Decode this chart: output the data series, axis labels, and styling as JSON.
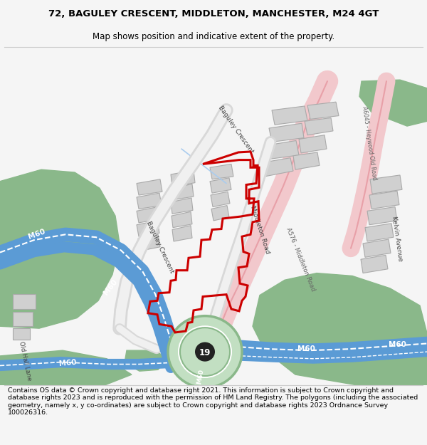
{
  "title_line1": "72, BAGULEY CRESCENT, MIDDLETON, MANCHESTER, M24 4GT",
  "title_line2": "Map shows position and indicative extent of the property.",
  "footer_text": "Contains OS data © Crown copyright and database right 2021. This information is subject to Crown copyright and database rights 2023 and is reproduced with the permission of HM Land Registry. The polygons (including the associated geometry, namely x, y co-ordinates) are subject to Crown copyright and database rights 2023 Ordnance Survey 100026316.",
  "bg_color": "#f5f5f5",
  "map_bg": "#ffffff",
  "road_blue": "#5b9bd5",
  "road_pink_fill": "#f2c8cc",
  "road_pink_edge": "#e8a0a8",
  "green_area": "#8ab88a",
  "roundabout_green": "#c2dfc2",
  "roundabout_edge": "#8ab88a",
  "building_gray": "#d0d0d0",
  "building_outline": "#aaaaaa",
  "red_polygon": "#cc0000",
  "road_gray": "#d8d8d8",
  "road_label_color": "#444444",
  "junction_bg": "#222222",
  "junction_text": "#ffffff",
  "separator_color": "#cccccc",
  "light_blue_line": "#aaccee",
  "title_fontsize": 9.5,
  "subtitle_fontsize": 8.5,
  "footer_fontsize": 6.8,
  "label_fontsize": 6.5,
  "m60_fontsize": 7.5
}
